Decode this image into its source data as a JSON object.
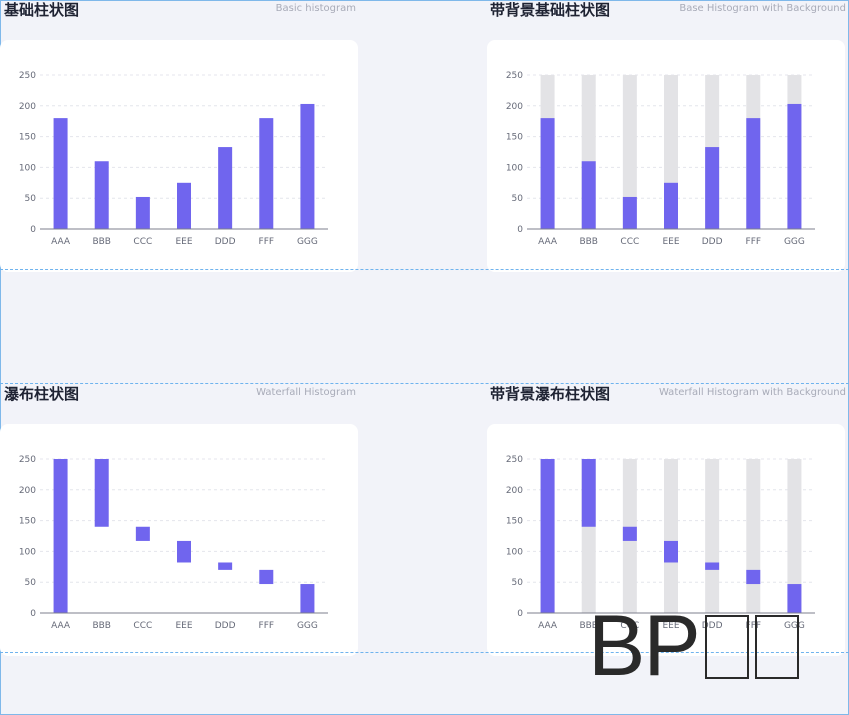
{
  "panels": [
    {
      "title": "基础柱状图",
      "subtitle": "Basic histogram",
      "chart_data": {
        "type": "bar",
        "categories": [
          "AAA",
          "BBB",
          "CCC",
          "EEE",
          "DDD",
          "FFF",
          "GGG"
        ],
        "values": [
          180,
          110,
          52,
          75,
          133,
          180,
          203
        ],
        "ylim": [
          0,
          250
        ],
        "yticks": [
          0,
          50,
          100,
          150,
          200,
          250
        ],
        "background_bars": false,
        "grid": true,
        "bar_color": "#7065ee"
      }
    },
    {
      "title": "带背景基础柱状图",
      "subtitle": "Base Histogram with Background",
      "chart_data": {
        "type": "bar",
        "categories": [
          "AAA",
          "BBB",
          "CCC",
          "EEE",
          "DDD",
          "FFF",
          "GGG"
        ],
        "values": [
          180,
          110,
          52,
          75,
          133,
          180,
          203
        ],
        "ylim": [
          0,
          250
        ],
        "yticks": [
          0,
          50,
          100,
          150,
          200,
          250
        ],
        "background_bars": true,
        "grid": true,
        "bar_color": "#7065ee",
        "background_color": "#e3e3e6"
      }
    },
    {
      "title": "瀑布柱状图",
      "subtitle": "Waterfall Histogram",
      "chart_data": {
        "type": "bar",
        "variant": "waterfall",
        "categories": [
          "AAA",
          "BBB",
          "CCC",
          "EEE",
          "DDD",
          "FFF",
          "GGG"
        ],
        "ranges": [
          [
            0,
            250
          ],
          [
            140,
            250
          ],
          [
            117,
            140
          ],
          [
            82,
            117
          ],
          [
            70,
            82
          ],
          [
            47,
            70
          ],
          [
            0,
            47
          ]
        ],
        "ylim": [
          0,
          250
        ],
        "yticks": [
          0,
          50,
          100,
          150,
          200,
          250
        ],
        "background_bars": false,
        "grid": true,
        "bar_color": "#7065ee"
      }
    },
    {
      "title": "带背景瀑布柱状图",
      "subtitle": "Waterfall Histogram with Background",
      "chart_data": {
        "type": "bar",
        "variant": "waterfall",
        "categories": [
          "AAA",
          "BBB",
          "CCC",
          "EEE",
          "DDD",
          "FFF",
          "GGG"
        ],
        "ranges": [
          [
            0,
            250
          ],
          [
            140,
            250
          ],
          [
            117,
            140
          ],
          [
            82,
            117
          ],
          [
            70,
            82
          ],
          [
            47,
            70
          ],
          [
            0,
            47
          ]
        ],
        "ylim": [
          0,
          250
        ],
        "yticks": [
          0,
          50,
          100,
          150,
          200,
          250
        ],
        "background_bars": true,
        "grid": true,
        "bar_color": "#7065ee",
        "background_color": "#e3e3e6"
      }
    }
  ],
  "watermark": {
    "text": "BP"
  }
}
